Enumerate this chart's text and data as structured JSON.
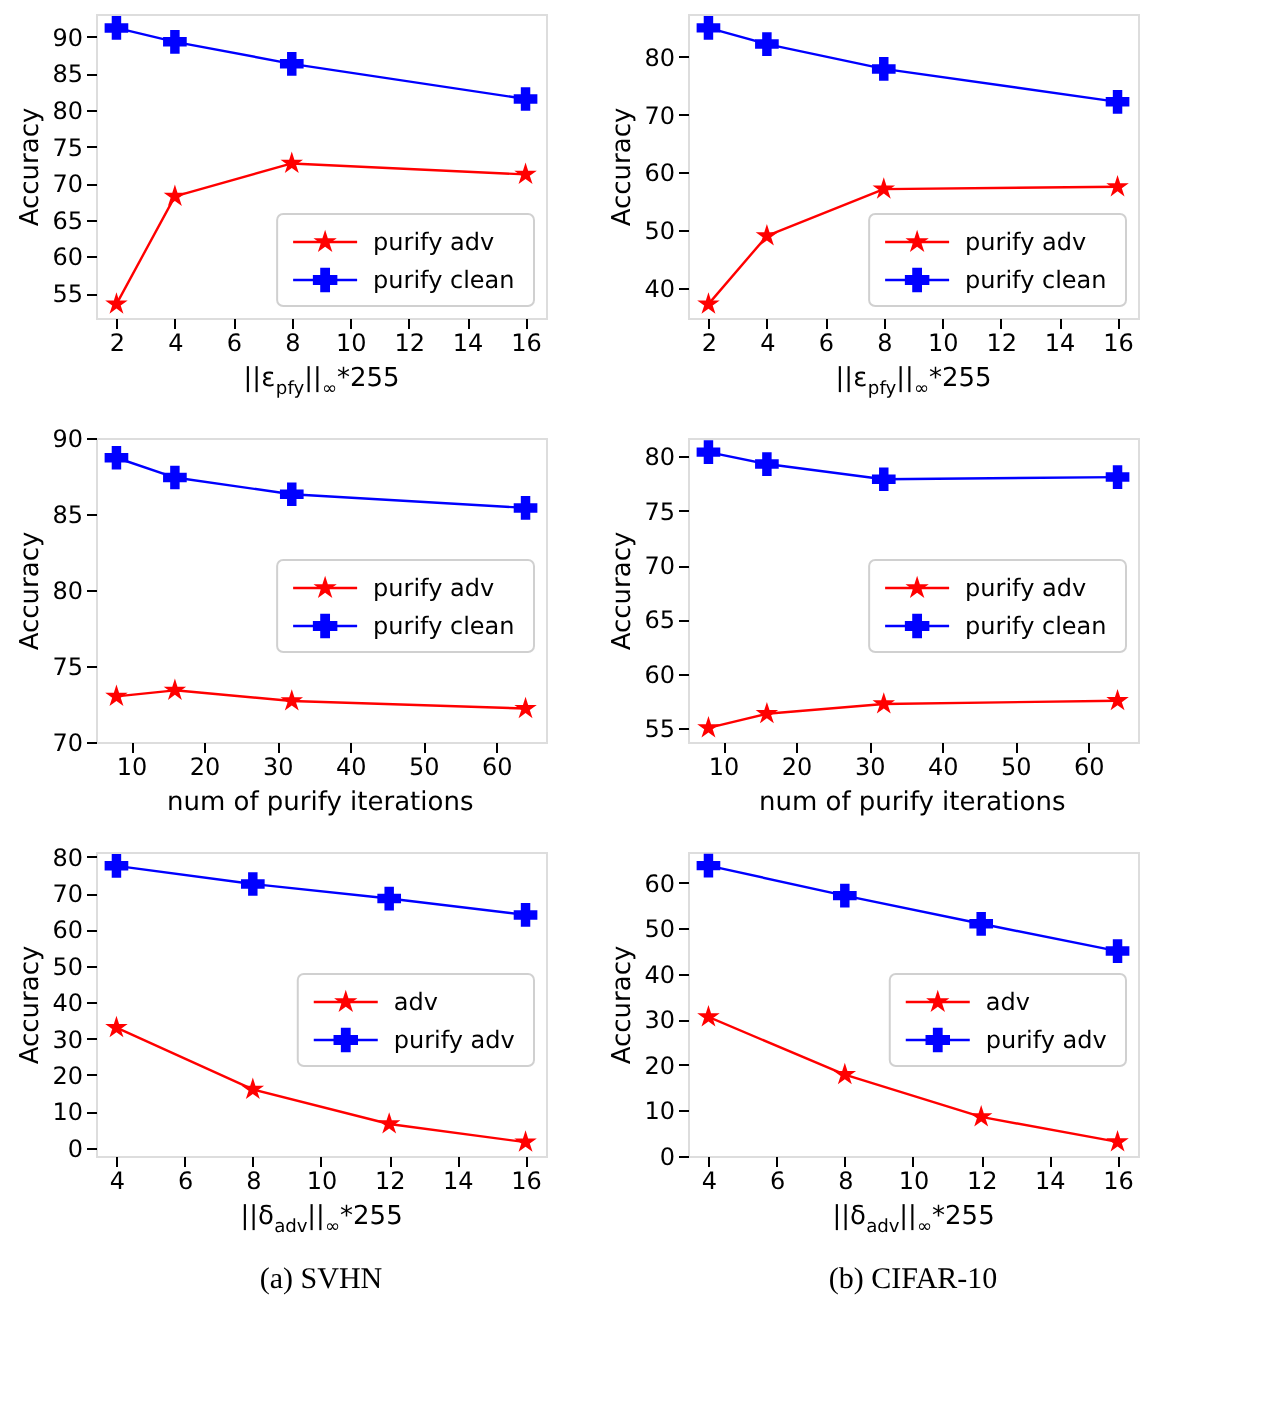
{
  "chart_data": [
    {
      "type": "line",
      "x": [
        2,
        4,
        8,
        16
      ],
      "xlabel": "||ε$_{pfy}$||$_{∞}$*255",
      "ylabel": "Accuracy",
      "xlim": [
        1.3,
        16.7
      ],
      "xticks": [
        2,
        4,
        6,
        8,
        10,
        12,
        14,
        16
      ],
      "ylim": [
        51.6,
        93.1
      ],
      "yticks": [
        55,
        60,
        65,
        70,
        75,
        80,
        85,
        90
      ],
      "legend": "bottom right",
      "grid": false,
      "series": [
        {
          "name": "purify adv",
          "color": "#ff0000",
          "marker": "star",
          "values": [
            53.5,
            68.2,
            72.7,
            71.2
          ]
        },
        {
          "name": "purify clean",
          "color": "#0000ff",
          "marker": "cross",
          "values": [
            91.2,
            89.3,
            86.3,
            81.5
          ]
        }
      ]
    },
    {
      "type": "line",
      "x": [
        2,
        4,
        8,
        16
      ],
      "xlabel": "||ε$_{pfy}$||$_{∞}$*255",
      "ylabel": "Accuracy",
      "xlim": [
        1.3,
        16.7
      ],
      "xticks": [
        2,
        4,
        6,
        8,
        10,
        12,
        14,
        16
      ],
      "ylim": [
        34.8,
        87.4
      ],
      "yticks": [
        40,
        50,
        60,
        70,
        80
      ],
      "legend": "bottom right",
      "grid": false,
      "series": [
        {
          "name": "purify adv",
          "color": "#ff0000",
          "marker": "star",
          "values": [
            37.2,
            49.0,
            57.1,
            57.5
          ]
        },
        {
          "name": "purify clean",
          "color": "#0000ff",
          "marker": "cross",
          "values": [
            85.0,
            82.2,
            77.9,
            72.2
          ]
        }
      ]
    },
    {
      "type": "line",
      "x": [
        8,
        16,
        32,
        64
      ],
      "xlabel": "num of purify iterations",
      "ylabel": "Accuracy",
      "xlim": [
        5.2,
        66.8
      ],
      "xticks": [
        10,
        20,
        30,
        40,
        50,
        60
      ],
      "ylim": [
        70,
        90
      ],
      "yticks": [
        70,
        75,
        80,
        85,
        90
      ],
      "legend": "right",
      "grid": false,
      "series": [
        {
          "name": "purify adv",
          "color": "#ff0000",
          "marker": "star",
          "values": [
            73.0,
            73.4,
            72.7,
            72.2
          ]
        },
        {
          "name": "purify clean",
          "color": "#0000ff",
          "marker": "cross",
          "values": [
            88.7,
            87.4,
            86.3,
            85.4
          ]
        }
      ]
    },
    {
      "type": "line",
      "x": [
        8,
        16,
        32,
        64
      ],
      "xlabel": "num of purify iterations",
      "ylabel": "Accuracy",
      "xlim": [
        5.2,
        66.8
      ],
      "xticks": [
        10,
        20,
        30,
        40,
        50,
        60
      ],
      "ylim": [
        53.7,
        81.7
      ],
      "yticks": [
        55,
        60,
        65,
        70,
        75,
        80
      ],
      "legend": "right",
      "grid": false,
      "series": [
        {
          "name": "purify adv",
          "color": "#ff0000",
          "marker": "star",
          "values": [
            55.0,
            56.3,
            57.2,
            57.5
          ]
        },
        {
          "name": "purify clean",
          "color": "#0000ff",
          "marker": "cross",
          "values": [
            80.4,
            79.3,
            77.9,
            78.1
          ]
        }
      ]
    },
    {
      "type": "line",
      "x": [
        4,
        8,
        12,
        16
      ],
      "xlabel": "||δ$_{adv}$||$_{∞}$*255",
      "ylabel": "Accuracy",
      "xlim": [
        3.4,
        16.6
      ],
      "xticks": [
        4,
        6,
        8,
        10,
        12,
        14,
        16
      ],
      "ylim": [
        -2.3,
        81.3
      ],
      "yticks": [
        0,
        10,
        20,
        30,
        40,
        50,
        60,
        70,
        80
      ],
      "legend": "right",
      "grid": false,
      "annotations": [
        "(a) SVHN"
      ],
      "series": [
        {
          "name": "adv",
          "color": "#ff0000",
          "marker": "star",
          "values": [
            33.0,
            16.0,
            6.5,
            1.5
          ]
        },
        {
          "name": "purify adv",
          "color": "#0000ff",
          "marker": "cross",
          "values": [
            77.5,
            72.5,
            68.5,
            64.0
          ]
        }
      ]
    },
    {
      "type": "line",
      "x": [
        4,
        8,
        12,
        16
      ],
      "xlabel": "||δ$_{adv}$||$_{∞}$*255",
      "ylabel": "Accuracy",
      "xlim": [
        3.4,
        16.6
      ],
      "xticks": [
        4,
        6,
        8,
        10,
        12,
        14,
        16
      ],
      "ylim": [
        -0.1,
        66.8
      ],
      "yticks": [
        0,
        10,
        20,
        30,
        40,
        50,
        60
      ],
      "legend": "right",
      "grid": false,
      "annotations": [
        "(b) CIFAR-10"
      ],
      "series": [
        {
          "name": "adv",
          "color": "#ff0000",
          "marker": "star",
          "values": [
            30.5,
            17.8,
            8.5,
            3.0
          ]
        },
        {
          "name": "purify adv",
          "color": "#0000ff",
          "marker": "cross",
          "values": [
            63.8,
            57.2,
            51.0,
            45.0
          ]
        }
      ]
    }
  ]
}
